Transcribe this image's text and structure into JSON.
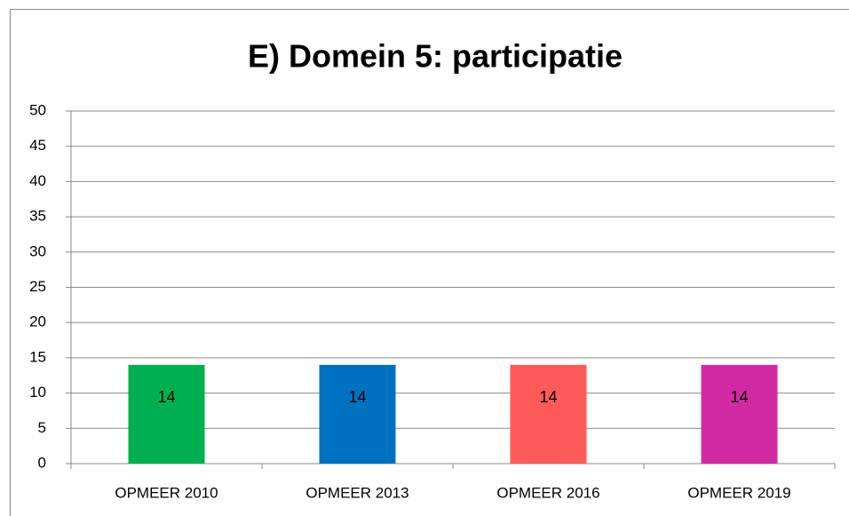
{
  "chart_data": {
    "type": "bar",
    "title": "E) Domein 5: participatie",
    "categories": [
      "OPMEER 2010",
      "OPMEER 2013",
      "OPMEER 2016",
      "OPMEER 2019"
    ],
    "values": [
      14,
      14,
      14,
      14
    ],
    "colors": [
      "#00b050",
      "#0070c0",
      "#ff5a5a",
      "#d22aa5"
    ],
    "ylim": [
      0,
      50
    ],
    "yticks": [
      0,
      5,
      10,
      15,
      20,
      25,
      30,
      35,
      40,
      45,
      50
    ],
    "grid": true
  }
}
